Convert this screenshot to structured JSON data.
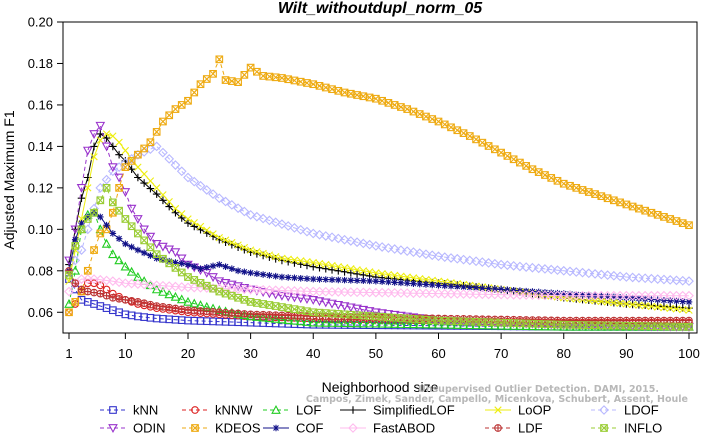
{
  "chart_data": {
    "type": "line",
    "title": "Wilt_withoutdupl_norm_05",
    "xlabel": "Neighborhood size",
    "ylabel": "Adjusted Maximum F1",
    "xlim": [
      1,
      100
    ],
    "ylim": [
      0.05,
      0.2
    ],
    "xticks": [
      1,
      10,
      20,
      30,
      40,
      50,
      60,
      70,
      80,
      90,
      100
    ],
    "yticks": [
      0.06,
      0.08,
      0.1,
      0.12,
      0.14,
      0.16,
      0.18,
      0.2
    ],
    "ytick_labels": [
      "0.06",
      "0.08",
      "0.10",
      "0.12",
      "0.14",
      "0.16",
      "0.18",
      "0.20"
    ],
    "grid": false,
    "legend_position": "bottom",
    "watermark": [
      "Campos, Zimek, Sander, Campello, Micenkova, Schubert, Assent, Houle",
      "Unsupervised Outlier Detection. DAMI, 2015."
    ],
    "series": [
      {
        "name": "kNN",
        "color": "#3333cc",
        "marker": "square",
        "dash": "4,3",
        "points": [
          [
            1,
            0.076
          ],
          [
            2,
            0.071
          ],
          [
            3,
            0.066
          ],
          [
            4,
            0.065
          ],
          [
            5,
            0.064
          ],
          [
            6,
            0.063
          ],
          [
            8,
            0.061
          ],
          [
            10,
            0.059
          ],
          [
            12,
            0.058
          ],
          [
            15,
            0.057
          ],
          [
            20,
            0.056
          ],
          [
            30,
            0.055
          ],
          [
            40,
            0.054
          ],
          [
            60,
            0.0535
          ],
          [
            80,
            0.053
          ],
          [
            100,
            0.053
          ]
        ]
      },
      {
        "name": "kNNW",
        "color": "#dd2222",
        "marker": "circle",
        "dash": "4,3",
        "points": [
          [
            1,
            0.06
          ],
          [
            2,
            0.064
          ],
          [
            3,
            0.07
          ],
          [
            4,
            0.074
          ],
          [
            5,
            0.074
          ],
          [
            6,
            0.073
          ],
          [
            8,
            0.069
          ],
          [
            10,
            0.066
          ],
          [
            12,
            0.064
          ],
          [
            15,
            0.062
          ],
          [
            20,
            0.06
          ],
          [
            30,
            0.058
          ],
          [
            40,
            0.057
          ],
          [
            60,
            0.056
          ],
          [
            80,
            0.055
          ],
          [
            100,
            0.055
          ]
        ]
      },
      {
        "name": "LOF",
        "color": "#22cc22",
        "marker": "triangle-up",
        "dash": "4,3",
        "points": [
          [
            1,
            0.064
          ],
          [
            2,
            0.08
          ],
          [
            3,
            0.1
          ],
          [
            4,
            0.107
          ],
          [
            5,
            0.108
          ],
          [
            6,
            0.1
          ],
          [
            7,
            0.093
          ],
          [
            8,
            0.088
          ],
          [
            10,
            0.082
          ],
          [
            12,
            0.077
          ],
          [
            15,
            0.071
          ],
          [
            20,
            0.065
          ],
          [
            25,
            0.061
          ],
          [
            30,
            0.058
          ],
          [
            40,
            0.055
          ],
          [
            60,
            0.054
          ],
          [
            80,
            0.053
          ],
          [
            100,
            0.053
          ]
        ]
      },
      {
        "name": "SimplifiedLOF",
        "color": "#000000",
        "marker": "plus",
        "dash": "",
        "points": [
          [
            1,
            0.083
          ],
          [
            2,
            0.1
          ],
          [
            3,
            0.115
          ],
          [
            4,
            0.125
          ],
          [
            5,
            0.14
          ],
          [
            6,
            0.146
          ],
          [
            7,
            0.144
          ],
          [
            8,
            0.14
          ],
          [
            9,
            0.136
          ],
          [
            10,
            0.133
          ],
          [
            12,
            0.125
          ],
          [
            15,
            0.117
          ],
          [
            18,
            0.108
          ],
          [
            20,
            0.103
          ],
          [
            25,
            0.095
          ],
          [
            30,
            0.089
          ],
          [
            35,
            0.085
          ],
          [
            40,
            0.082
          ],
          [
            50,
            0.077
          ],
          [
            60,
            0.074
          ],
          [
            70,
            0.071
          ],
          [
            80,
            0.067
          ],
          [
            90,
            0.064
          ],
          [
            100,
            0.062
          ]
        ]
      },
      {
        "name": "LoOP",
        "color": "#eeee11",
        "marker": "cross",
        "dash": "",
        "points": [
          [
            1,
            0.075
          ],
          [
            2,
            0.09
          ],
          [
            3,
            0.105
          ],
          [
            4,
            0.12
          ],
          [
            5,
            0.135
          ],
          [
            6,
            0.143
          ],
          [
            7,
            0.146
          ],
          [
            8,
            0.145
          ],
          [
            9,
            0.142
          ],
          [
            10,
            0.138
          ],
          [
            12,
            0.13
          ],
          [
            15,
            0.12
          ],
          [
            18,
            0.11
          ],
          [
            20,
            0.105
          ],
          [
            25,
            0.096
          ],
          [
            30,
            0.09
          ],
          [
            35,
            0.086
          ],
          [
            40,
            0.084
          ],
          [
            50,
            0.079
          ],
          [
            60,
            0.075
          ],
          [
            70,
            0.071
          ],
          [
            80,
            0.067
          ],
          [
            90,
            0.064
          ],
          [
            100,
            0.061
          ]
        ]
      },
      {
        "name": "LDOF",
        "color": "#b8b8ff",
        "marker": "diamond",
        "dash": "4,3",
        "points": [
          [
            1,
            0.08
          ],
          [
            2,
            0.085
          ],
          [
            3,
            0.09
          ],
          [
            4,
            0.1
          ],
          [
            5,
            0.11
          ],
          [
            6,
            0.12
          ],
          [
            8,
            0.128
          ],
          [
            10,
            0.132
          ],
          [
            12,
            0.136
          ],
          [
            15,
            0.14
          ],
          [
            18,
            0.131
          ],
          [
            20,
            0.125
          ],
          [
            25,
            0.115
          ],
          [
            30,
            0.107
          ],
          [
            40,
            0.098
          ],
          [
            50,
            0.092
          ],
          [
            60,
            0.087
          ],
          [
            70,
            0.083
          ],
          [
            80,
            0.08
          ],
          [
            90,
            0.077
          ],
          [
            100,
            0.075
          ]
        ]
      },
      {
        "name": "ODIN",
        "color": "#9933cc",
        "marker": "triangle-down",
        "dash": "4,3",
        "points": [
          [
            1,
            0.085
          ],
          [
            2,
            0.1
          ],
          [
            3,
            0.12
          ],
          [
            4,
            0.138
          ],
          [
            5,
            0.146
          ],
          [
            6,
            0.15
          ],
          [
            7,
            0.14
          ],
          [
            8,
            0.13
          ],
          [
            9,
            0.125
          ],
          [
            10,
            0.118
          ],
          [
            11,
            0.11
          ],
          [
            12,
            0.105
          ],
          [
            13,
            0.1
          ],
          [
            15,
            0.093
          ],
          [
            18,
            0.089
          ],
          [
            20,
            0.083
          ],
          [
            23,
            0.079
          ],
          [
            25,
            0.075
          ],
          [
            30,
            0.071
          ],
          [
            35,
            0.068
          ],
          [
            40,
            0.066
          ],
          [
            45,
            0.063
          ],
          [
            50,
            0.06
          ],
          [
            55,
            0.058
          ],
          [
            60,
            0.056
          ],
          [
            70,
            0.055
          ],
          [
            80,
            0.054
          ],
          [
            100,
            0.053
          ]
        ]
      },
      {
        "name": "KDEOS",
        "color": "#eeaa11",
        "marker": "square-x",
        "dash": "4,3",
        "points": [
          [
            1,
            0.06
          ],
          [
            2,
            0.065
          ],
          [
            3,
            0.07
          ],
          [
            4,
            0.08
          ],
          [
            5,
            0.09
          ],
          [
            6,
            0.098
          ],
          [
            7,
            0.1
          ],
          [
            8,
            0.108
          ],
          [
            9,
            0.12
          ],
          [
            10,
            0.13
          ],
          [
            12,
            0.136
          ],
          [
            14,
            0.142
          ],
          [
            16,
            0.152
          ],
          [
            18,
            0.158
          ],
          [
            20,
            0.162
          ],
          [
            22,
            0.17
          ],
          [
            24,
            0.175
          ],
          [
            25,
            0.182
          ],
          [
            26,
            0.172
          ],
          [
            28,
            0.171
          ],
          [
            30,
            0.178
          ],
          [
            32,
            0.174
          ],
          [
            35,
            0.173
          ],
          [
            40,
            0.17
          ],
          [
            45,
            0.166
          ],
          [
            50,
            0.163
          ],
          [
            55,
            0.158
          ],
          [
            60,
            0.152
          ],
          [
            65,
            0.145
          ],
          [
            70,
            0.137
          ],
          [
            75,
            0.129
          ],
          [
            80,
            0.122
          ],
          [
            85,
            0.117
          ],
          [
            90,
            0.112
          ],
          [
            95,
            0.107
          ],
          [
            100,
            0.102
          ]
        ]
      },
      {
        "name": "COF",
        "color": "#111188",
        "marker": "asterisk",
        "dash": "",
        "points": [
          [
            1,
            0.08
          ],
          [
            2,
            0.095
          ],
          [
            3,
            0.103
          ],
          [
            4,
            0.106
          ],
          [
            5,
            0.108
          ],
          [
            6,
            0.106
          ],
          [
            8,
            0.098
          ],
          [
            10,
            0.093
          ],
          [
            12,
            0.09
          ],
          [
            15,
            0.086
          ],
          [
            18,
            0.084
          ],
          [
            20,
            0.083
          ],
          [
            22,
            0.081
          ],
          [
            25,
            0.083
          ],
          [
            28,
            0.08
          ],
          [
            30,
            0.079
          ],
          [
            35,
            0.077
          ],
          [
            40,
            0.076
          ],
          [
            50,
            0.075
          ],
          [
            60,
            0.073
          ],
          [
            70,
            0.071
          ],
          [
            80,
            0.069
          ],
          [
            90,
            0.067
          ],
          [
            100,
            0.065
          ]
        ]
      },
      {
        "name": "FastABOD",
        "color": "#ffbbee",
        "marker": "diamond",
        "dash": "",
        "points": [
          [
            1,
            0.07
          ],
          [
            2,
            0.074
          ],
          [
            3,
            0.076
          ],
          [
            5,
            0.076
          ],
          [
            8,
            0.075
          ],
          [
            10,
            0.074
          ],
          [
            15,
            0.073
          ],
          [
            20,
            0.072
          ],
          [
            30,
            0.071
          ],
          [
            40,
            0.07
          ],
          [
            60,
            0.069
          ],
          [
            80,
            0.068
          ],
          [
            100,
            0.068
          ]
        ]
      },
      {
        "name": "LDF",
        "color": "#bb3333",
        "marker": "circle-plus",
        "dash": "4,3",
        "points": [
          [
            1,
            0.08
          ],
          [
            2,
            0.074
          ],
          [
            3,
            0.071
          ],
          [
            4,
            0.07
          ],
          [
            6,
            0.069
          ],
          [
            8,
            0.067
          ],
          [
            10,
            0.066
          ],
          [
            12,
            0.065
          ],
          [
            15,
            0.063
          ],
          [
            20,
            0.061
          ],
          [
            30,
            0.059
          ],
          [
            40,
            0.058
          ],
          [
            60,
            0.057
          ],
          [
            80,
            0.056
          ],
          [
            100,
            0.056
          ]
        ]
      },
      {
        "name": "INFLO",
        "color": "#99cc33",
        "marker": "square-x",
        "dash": "4,3",
        "points": [
          [
            1,
            0.078
          ],
          [
            2,
            0.092
          ],
          [
            3,
            0.1
          ],
          [
            4,
            0.105
          ],
          [
            5,
            0.108
          ],
          [
            6,
            0.114
          ],
          [
            7,
            0.12
          ],
          [
            8,
            0.113
          ],
          [
            9,
            0.109
          ],
          [
            10,
            0.105
          ],
          [
            12,
            0.098
          ],
          [
            15,
            0.088
          ],
          [
            20,
            0.077
          ],
          [
            25,
            0.07
          ],
          [
            30,
            0.065
          ],
          [
            40,
            0.06
          ],
          [
            60,
            0.056
          ],
          [
            80,
            0.054
          ],
          [
            100,
            0.053
          ]
        ]
      }
    ]
  }
}
